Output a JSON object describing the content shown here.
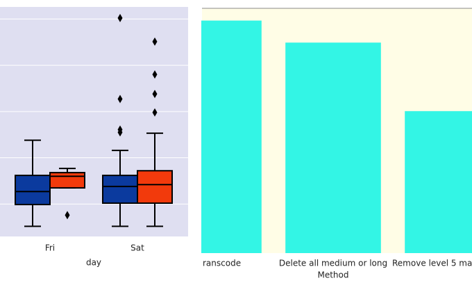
{
  "chart_data": [
    {
      "type": "box",
      "x_label": "day",
      "categories": [
        "Fri",
        "Sat"
      ],
      "ylim": [
        3,
        52.6
      ],
      "yticks": [
        10,
        20,
        30,
        40,
        50
      ],
      "grid": true,
      "series": [
        {
          "color": "#0b3a9e",
          "boxes": [
            {
              "low": 5.2,
              "q1": 9.9,
              "median": 12.7,
              "q3": 16.2,
              "high": 23.8,
              "outliers": []
            },
            {
              "low": 5.2,
              "q1": 10.2,
              "median": 13.8,
              "q3": 16.2,
              "high": 21.6,
              "outliers": [
                25.5,
                26.1,
                32.7,
                50.2
              ]
            }
          ]
        },
        {
          "color": "#f23a0c",
          "boxes": [
            {
              "low": 13.5,
              "q1": 13.5,
              "median": 16.0,
              "q3": 16.8,
              "high": 17.7,
              "outliers": [
                7.6
              ]
            },
            {
              "low": 5.2,
              "q1": 10.2,
              "median": 14.2,
              "q3": 17.2,
              "high": 25.3,
              "outliers": [
                29.8,
                33.8,
                38.0,
                45.1
              ]
            }
          ]
        }
      ]
    },
    {
      "type": "bar",
      "x_label": "Method",
      "categories": [
        "ranscode",
        "Delete all medium or long",
        "Remove level 5 ma"
      ],
      "values": [
        95,
        86,
        58
      ],
      "color": "#33f5e5",
      "ylim": [
        0,
        100
      ]
    }
  ]
}
